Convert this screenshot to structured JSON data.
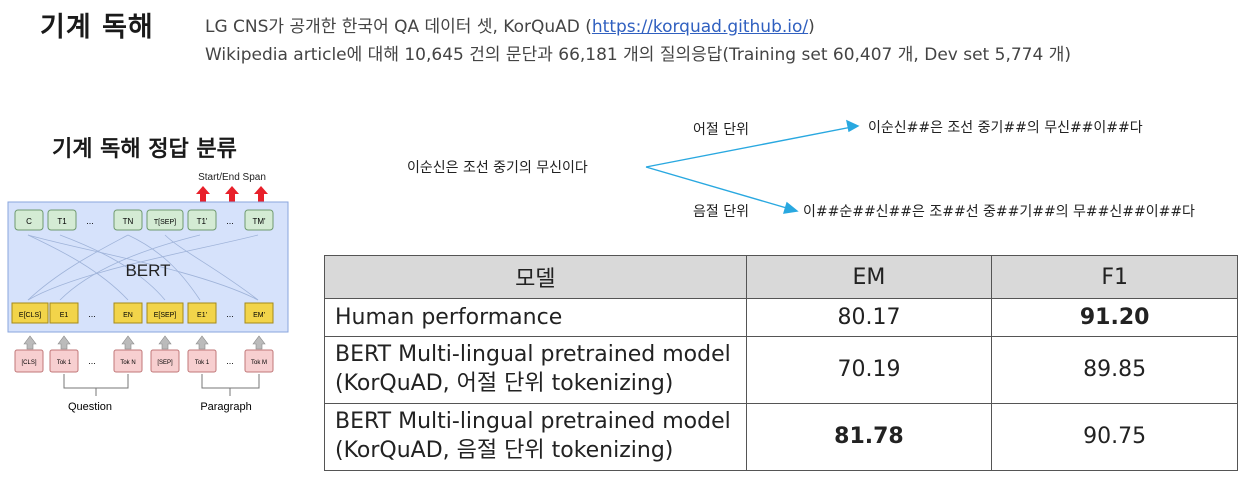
{
  "header": {
    "title": "기계 독해",
    "line1_prefix": "LG CNS가 공개한 한국어 QA 데이터 셋, KorQuAD (",
    "line1_link": "https://korquad.github.io/",
    "line1_suffix": ")",
    "line2": "Wikipedia article에 대해 10,645 건의 문단과 66,181 개의 질의응답(Training set 60,407 개, Dev set 5,774 개)"
  },
  "diagram": {
    "subtitle": "기계 독해 정답 분류",
    "output_label": "Start/End Span",
    "model_label": "BERT",
    "top_tokens": [
      "C",
      "T1",
      "...",
      "TN",
      "T[SEP]",
      "T1'",
      "...",
      "TM'"
    ],
    "embeddings": [
      "E[CLS]",
      "E1",
      "...",
      "EN",
      "E[SEP]",
      "E1'",
      "...",
      "EM'"
    ],
    "inputs": [
      "[CLS]",
      "Tok 1",
      "...",
      "Tok N",
      "[SEP]",
      "Tok 1",
      "...",
      "Tok M"
    ],
    "question_label": "Question",
    "paragraph_label": "Paragraph"
  },
  "tokenization": {
    "source": "이순신은 조선 중기의 무신이다",
    "word_label": "어절 단위",
    "word_result": "이순신##은 조선 중기##의 무신##이##다",
    "syllable_label": "음절 단위",
    "syllable_result": "이##순##신##은 조##선 중##기##의 무##신##이##다",
    "arrow_color": "#29a8e0"
  },
  "table": {
    "headers": [
      "모델",
      "EM",
      "F1"
    ],
    "rows": [
      {
        "model": "Human performance",
        "model2": "",
        "em": "80.17",
        "f1": "91.20"
      },
      {
        "model": "BERT Multi-lingual pretrained model",
        "model2": "(KorQuAD, 어절 단위 tokenizing)",
        "em": "70.19",
        "f1": "89.85"
      },
      {
        "model": "BERT Multi-lingual pretrained model",
        "model2": "(KorQuAD, 음절 단위 tokenizing)",
        "em": "81.78",
        "f1": "90.75"
      }
    ]
  },
  "colors": {
    "bert_box": "#d6e2fb",
    "top_token": "#d4ebd4",
    "embedding": "#f2d44a",
    "input_token": "#f7cfd0",
    "up_arrow": "#e8202a"
  }
}
